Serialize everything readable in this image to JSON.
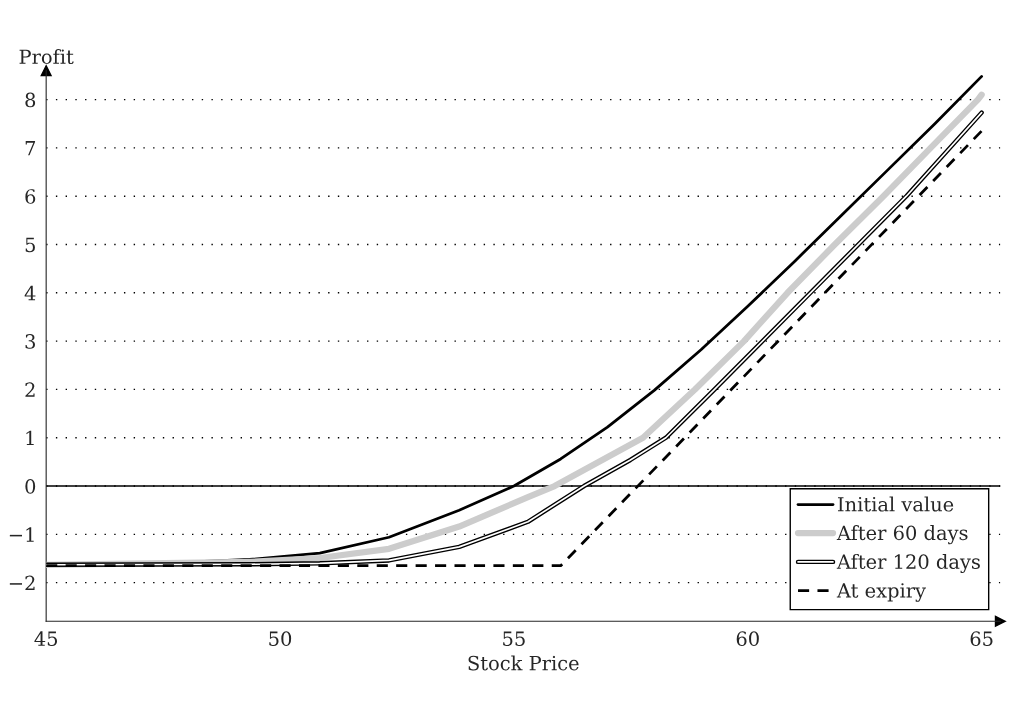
{
  "chart_data": {
    "type": "line",
    "xlabel": "Stock Price",
    "ylabel": "Profit",
    "xlim": [
      45,
      65.4
    ],
    "ylim": [
      -2.8,
      8.6
    ],
    "xticks": [
      45,
      50,
      55,
      60,
      65
    ],
    "yticks": [
      -2,
      -1,
      0,
      1,
      2,
      3,
      4,
      5,
      6,
      7,
      8
    ],
    "grid": "y",
    "legend": "bottom right",
    "ref_lines": [
      {
        "axis": "y",
        "value": 0,
        "color": "#000000"
      }
    ],
    "series": [
      {
        "name": "Initial value",
        "color": "#000000",
        "line_style": "solid",
        "x": [
          45,
          47.9,
          49.35,
          50.85,
          52.33,
          53.83,
          55,
          56,
          57,
          58,
          59,
          60,
          61,
          62,
          63,
          64,
          65
        ],
        "values": [
          -1.62,
          -1.58,
          -1.52,
          -1.39,
          -1.06,
          -0.5,
          0,
          0.56,
          1.22,
          1.98,
          2.82,
          3.72,
          4.65,
          5.6,
          6.55,
          7.5,
          8.48
        ]
      },
      {
        "name": "After 60 days",
        "color": "#cccccc",
        "line_style": "solid",
        "x": [
          45,
          49.35,
          50.85,
          52.33,
          53.83,
          55.3,
          55.87,
          57.76,
          58.87,
          59.92,
          60.85,
          61.86,
          62.9,
          63.91,
          64.92,
          65
        ],
        "values": [
          -1.63,
          -1.57,
          -1.49,
          -1.3,
          -0.84,
          -0.23,
          0,
          1,
          2,
          3,
          4,
          5,
          6,
          7,
          8,
          8.1
        ]
      },
      {
        "name": "After 120 days",
        "color": "#000000",
        "line_style": "solid",
        "x": [
          45,
          49.35,
          50.85,
          52.33,
          53.83,
          55.3,
          56.5,
          57.49,
          58.25,
          59.29,
          61.34,
          63.39,
          65
        ],
        "values": [
          -1.63,
          -1.62,
          -1.6,
          -1.54,
          -1.26,
          -0.74,
          0,
          0.54,
          1,
          2,
          4,
          6,
          7.73
        ]
      },
      {
        "name": "At expiry",
        "color": "#000000",
        "line_style": "dashed",
        "x": [
          45,
          56,
          65
        ],
        "values": [
          -1.65,
          -1.65,
          7.35
        ]
      }
    ]
  }
}
